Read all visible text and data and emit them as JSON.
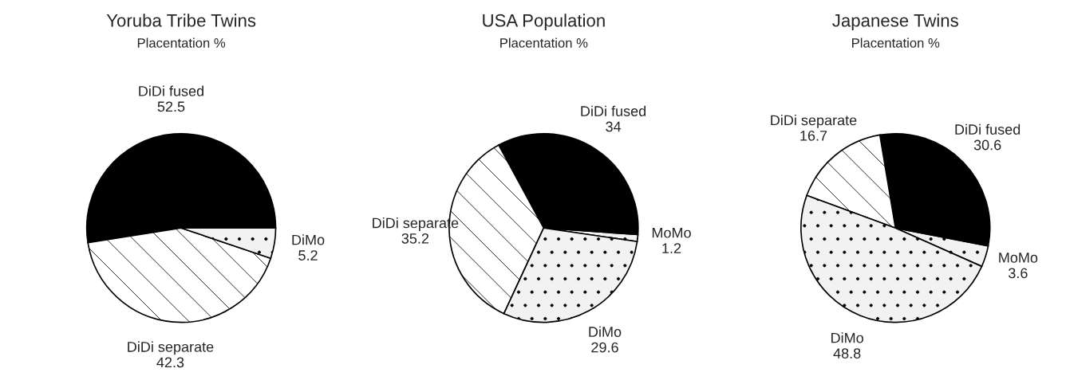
{
  "chart_data": [
    {
      "type": "pie",
      "title": "Yoruba Tribe Twins",
      "subtitle": "Placentation %",
      "categories": [
        "DiDi fused",
        "DiDi separate",
        "DiMo"
      ],
      "values": [
        52.5,
        42.3,
        5.2
      ],
      "colors": [
        "#000000",
        "#ffffff",
        "#f2f2f2"
      ],
      "data_labels": true
    },
    {
      "type": "pie",
      "title": "USA Population",
      "subtitle": "Placentation %",
      "categories": [
        "MoMo",
        "DiDi fused",
        "DiDi separate",
        "DiMo"
      ],
      "values": [
        1.2,
        34,
        35.2,
        29.6
      ],
      "colors": [
        "#f2f2f2",
        "#000000",
        "#ffffff",
        "#f2f2f2"
      ],
      "data_labels": true
    },
    {
      "type": "pie",
      "title": "Japanese Twins",
      "subtitle": "Placentation %",
      "categories": [
        "MoMo",
        "DiDi fused",
        "DiDi separate",
        "DiMo"
      ],
      "values": [
        3.6,
        30.6,
        16.7,
        48.8
      ],
      "colors": [
        "#f2f2f2",
        "#000000",
        "#ffffff",
        "#f2f2f2"
      ],
      "data_labels": true
    }
  ]
}
